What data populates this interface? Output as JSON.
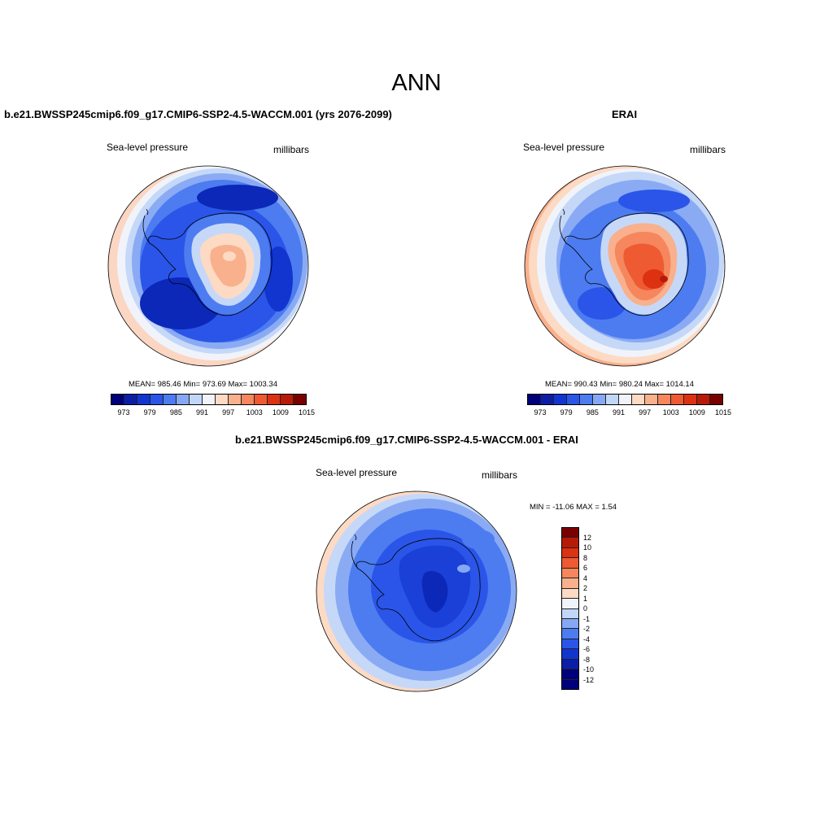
{
  "figure": {
    "title": "ANN"
  },
  "panels": {
    "model": {
      "title": "b.e21.BWSSP245cmip6.f09_g17.CMIP6-SSP2-4.5-WACCM.001 (yrs 2076-2099)",
      "variable": "Sea-level pressure",
      "units": "millibars",
      "stats": "MEAN= 985.46  Min= 973.69  Max= 1003.34",
      "mean": 985.46,
      "min": 973.69,
      "max": 1003.34
    },
    "obs": {
      "title": "ERAI",
      "variable": "Sea-level pressure",
      "units": "millibars",
      "stats": "MEAN= 990.43  Min= 980.24  Max= 1014.14",
      "mean": 990.43,
      "min": 980.24,
      "max": 1014.14
    },
    "diff": {
      "title": "b.e21.BWSSP245cmip6.f09_g17.CMIP6-SSP2-4.5-WACCM.001 - ERAI",
      "variable": "Sea-level pressure",
      "units": "millibars",
      "minmax": "MIN = -11.06 MAX =   1.54",
      "min": -11.06,
      "max": 1.54
    }
  },
  "colorbar_main": {
    "labels": [
      "973",
      "979",
      "985",
      "991",
      "997",
      "1003",
      "1009",
      "1015"
    ],
    "colors": [
      "#00007a",
      "#0a1ea8",
      "#1235d0",
      "#2a55e8",
      "#4c7cf0",
      "#86a8f4",
      "#c2d6f8",
      "#f0f4fa",
      "#fcdac4",
      "#f9b08c",
      "#f5865e",
      "#ee5a32",
      "#dc3212",
      "#b81a08",
      "#7a0000"
    ]
  },
  "colorbar_diff": {
    "labels": [
      "12",
      "10",
      "8",
      "6",
      "4",
      "2",
      "1",
      "0",
      "-1",
      "-2",
      "-4",
      "-6",
      "-8",
      "-10",
      "-12"
    ],
    "colors": [
      "#7a0000",
      "#b81a08",
      "#dc3212",
      "#ee5a32",
      "#f5865e",
      "#f9b08c",
      "#fcdac4",
      "#f0f4fa",
      "#c2d6f8",
      "#86a8f4",
      "#4c7cf0",
      "#2a55e8",
      "#1235d0",
      "#0a1ea8",
      "#00007a",
      "#00007a"
    ]
  },
  "map_colors": {
    "ring_warm": "#fbd6c2",
    "ring_pale": "#c6d8f8",
    "ring_light": "#8aabf4",
    "mid": "#4c7cf0",
    "deep": "#1a40d8",
    "deepest": "#0c28b8",
    "coast": "#000000"
  }
}
